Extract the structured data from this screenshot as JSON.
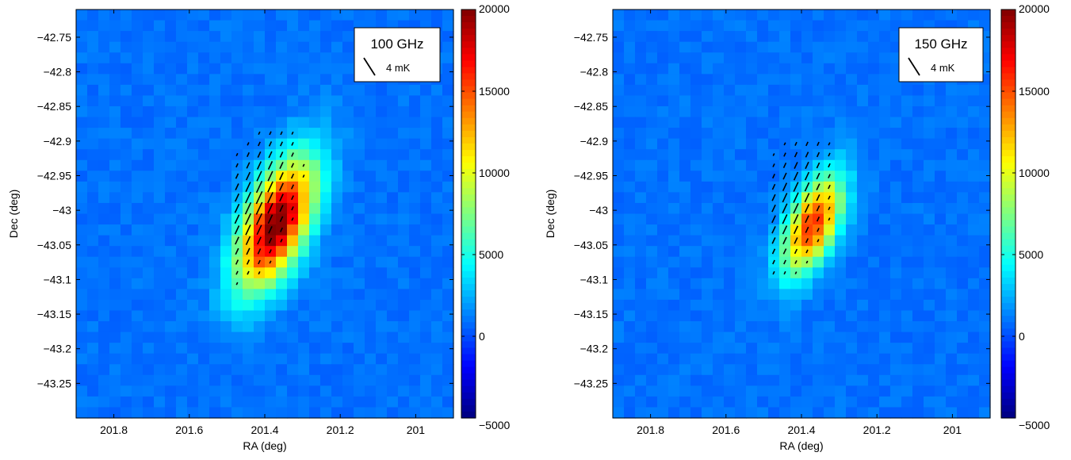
{
  "chart_data": [
    {
      "type": "heatmap",
      "title": "",
      "xlabel": "RA (deg)",
      "ylabel": "Dec (deg)",
      "xlim": [
        201.9,
        200.9
      ],
      "ylim": [
        -43.3,
        -42.71
      ],
      "x_reversed": true,
      "x_ticks": [
        201.8,
        201.6,
        201.4,
        201.2,
        201
      ],
      "x_tick_labels": [
        "201.8",
        "201.6",
        "201.4",
        "201.2",
        "201"
      ],
      "y_ticks": [
        -42.75,
        -42.8,
        -42.85,
        -42.9,
        -42.95,
        -43,
        -43.05,
        -43.1,
        -43.15,
        -43.2,
        -43.25
      ],
      "y_tick_labels": [
        "−42.75",
        "−42.8",
        "−42.85",
        "−42.9",
        "−42.95",
        "−43",
        "−43.05",
        "−43.1",
        "−43.15",
        "−43.2",
        "−43.25"
      ],
      "colorbar": {
        "range": [
          -5000,
          20000
        ],
        "ticks": [
          20000,
          15000,
          10000,
          5000,
          0,
          -5000
        ],
        "tick_labels": [
          "20000",
          "15000",
          "10000",
          "5000",
          "0",
          "−5000"
        ],
        "colormap": "jet"
      },
      "legend": {
        "label": "100 GHz",
        "scale_label": "4 mK",
        "placement": "top-right"
      },
      "source": {
        "center_ra": 201.37,
        "center_dec": -43.02,
        "peak": 19500,
        "sigma_major_deg": 0.085,
        "sigma_minor_deg": 0.045,
        "pa_deg": 40
      },
      "polarization": {
        "region_ra": [
          201.25,
          201.5
        ],
        "region_dec": [
          -43.12,
          -42.88
        ],
        "angle_deg": 25,
        "max_pol_mk": 2.5
      },
      "background_level": 900
    },
    {
      "type": "heatmap",
      "title": "",
      "xlabel": "RA (deg)",
      "ylabel": "Dec (deg)",
      "xlim": [
        201.9,
        200.9
      ],
      "ylim": [
        -43.3,
        -42.71
      ],
      "x_reversed": true,
      "x_ticks": [
        201.8,
        201.6,
        201.4,
        201.2,
        201
      ],
      "x_tick_labels": [
        "201.8",
        "201.6",
        "201.4",
        "201.2",
        "201"
      ],
      "y_ticks": [
        -42.75,
        -42.8,
        -42.85,
        -42.9,
        -42.95,
        -43,
        -43.05,
        -43.1,
        -43.15,
        -43.2,
        -43.25
      ],
      "y_tick_labels": [
        "−42.75",
        "−42.8",
        "−42.85",
        "−42.9",
        "−42.95",
        "−43",
        "−43.05",
        "−43.1",
        "−43.15",
        "−43.2",
        "−43.25"
      ],
      "colorbar": {
        "range": [
          -5000,
          20000
        ],
        "ticks": [
          20000,
          15000,
          10000,
          5000,
          0,
          -5000
        ],
        "tick_labels": [
          "20000",
          "15000",
          "10000",
          "5000",
          "0",
          "−5000"
        ],
        "colormap": "jet"
      },
      "legend": {
        "label": "150 GHz",
        "scale_label": "4 mK",
        "placement": "top-right"
      },
      "source": {
        "center_ra": 201.37,
        "center_dec": -43.02,
        "peak": 15000,
        "sigma_major_deg": 0.065,
        "sigma_minor_deg": 0.035,
        "pa_deg": 40
      },
      "polarization": {
        "region_ra": [
          201.3,
          201.5
        ],
        "region_dec": [
          -43.1,
          -42.9
        ],
        "angle_deg": 25,
        "max_pol_mk": 2.0
      },
      "background_level": 900
    }
  ]
}
